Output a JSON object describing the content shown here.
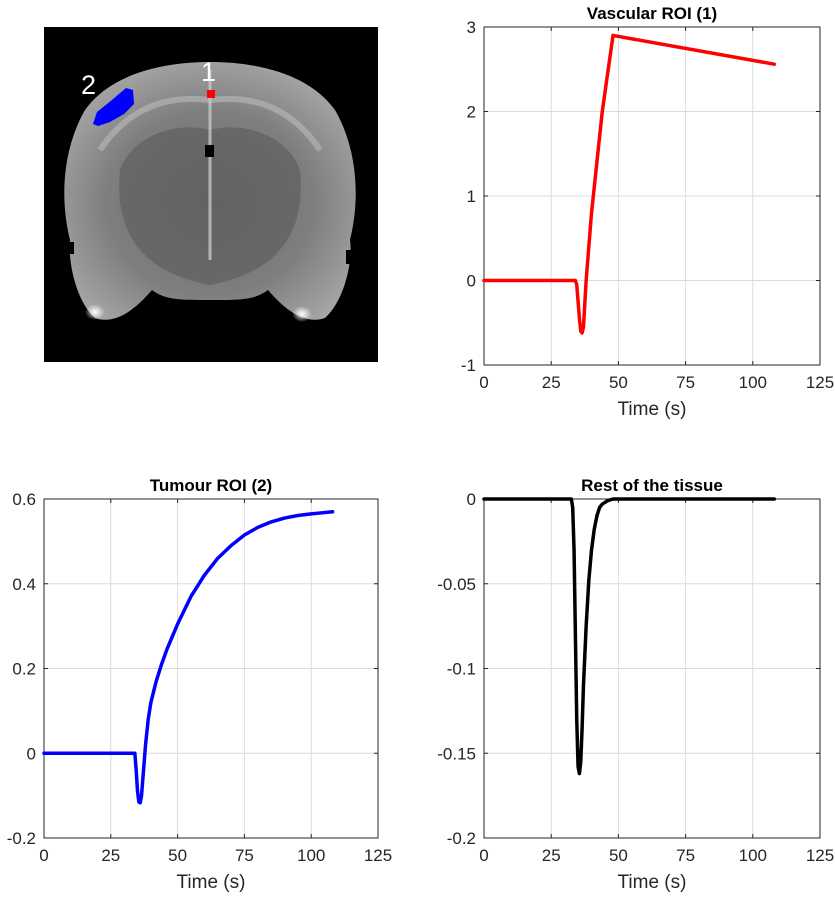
{
  "image_panel": {
    "roi_labels": [
      {
        "text": "1",
        "color": "#ff0000"
      },
      {
        "text": "2",
        "color": "#0000ff"
      }
    ]
  },
  "chart_data": [
    {
      "type": "line",
      "title": "Vascular ROI (1)",
      "xlabel": "Time (s)",
      "ylabel": "",
      "xlim": [
        0,
        125
      ],
      "ylim": [
        -1,
        3
      ],
      "xticks": [
        0,
        25,
        50,
        75,
        100,
        125
      ],
      "yticks": [
        -1,
        0,
        1,
        2,
        3
      ],
      "grid": true,
      "series": [
        {
          "color": "#ff0000",
          "x": [
            0,
            34,
            34.5,
            35,
            35.5,
            36,
            36.5,
            37,
            38,
            40,
            44,
            48,
            108
          ],
          "y": [
            0,
            0,
            -0.05,
            -0.25,
            -0.45,
            -0.6,
            -0.62,
            -0.55,
            0,
            0.8,
            2,
            2.9,
            2.56
          ]
        }
      ]
    },
    {
      "type": "line",
      "title": "Tumour ROI (2)",
      "xlabel": "Time (s)",
      "ylabel": "",
      "xlim": [
        0,
        125
      ],
      "ylim": [
        -0.2,
        0.6
      ],
      "xticks": [
        0,
        25,
        50,
        75,
        100,
        125
      ],
      "yticks": [
        -0.2,
        0,
        0.2,
        0.4,
        0.6
      ],
      "yticklabels": [
        "-0.2",
        "0",
        "0.2",
        "0.4",
        "0.6"
      ],
      "grid": true,
      "series": [
        {
          "color": "#0000ff",
          "x": [
            0,
            34,
            34.5,
            35,
            35.5,
            36,
            36.5,
            37,
            38,
            39,
            40,
            42,
            44,
            46,
            50,
            55,
            60,
            65,
            70,
            75,
            80,
            85,
            90,
            95,
            100,
            105,
            108
          ],
          "y": [
            0,
            0,
            -0.04,
            -0.09,
            -0.115,
            -0.117,
            -0.1,
            -0.06,
            0.02,
            0.08,
            0.12,
            0.17,
            0.21,
            0.245,
            0.305,
            0.37,
            0.42,
            0.46,
            0.49,
            0.515,
            0.533,
            0.546,
            0.555,
            0.561,
            0.565,
            0.568,
            0.57
          ]
        }
      ]
    },
    {
      "type": "line",
      "title": "Rest of the tissue",
      "xlabel": "Time (s)",
      "ylabel": "",
      "xlim": [
        0,
        125
      ],
      "ylim": [
        -0.2,
        0
      ],
      "xticks": [
        0,
        25,
        50,
        75,
        100,
        125
      ],
      "yticks": [
        -0.2,
        -0.15,
        -0.1,
        -0.05,
        0
      ],
      "yticklabels": [
        "-0.2",
        "-0.15",
        "-0.1",
        "-0.05",
        "0"
      ],
      "grid": true,
      "series": [
        {
          "color": "#000000",
          "x": [
            0,
            32.5,
            33,
            33.5,
            34,
            34.5,
            35,
            35.5,
            36,
            36.5,
            37,
            38,
            39,
            40,
            41,
            42,
            43,
            44,
            46,
            48,
            50,
            108
          ],
          "y": [
            0,
            0,
            -0.005,
            -0.03,
            -0.08,
            -0.13,
            -0.158,
            -0.162,
            -0.155,
            -0.135,
            -0.11,
            -0.075,
            -0.048,
            -0.03,
            -0.018,
            -0.01,
            -0.005,
            -0.003,
            -0.001,
            0,
            0,
            0
          ]
        }
      ]
    }
  ]
}
